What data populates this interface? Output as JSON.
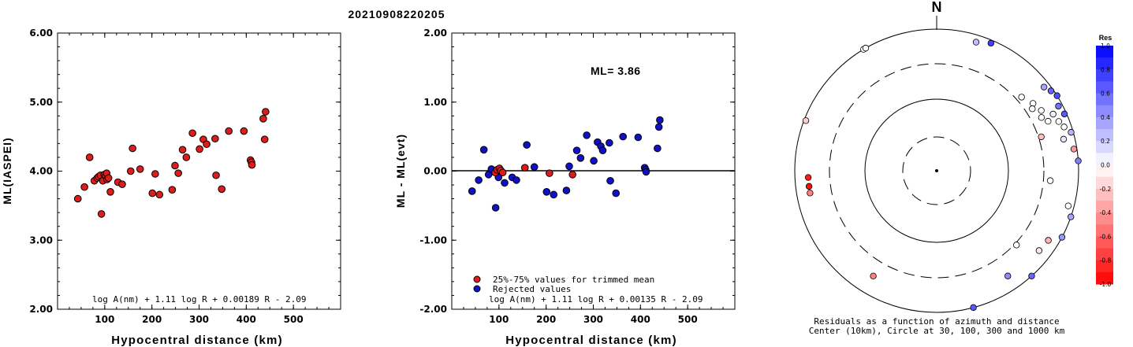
{
  "event_id": "20210908220205",
  "north_label": "N",
  "chart_data": [
    {
      "type": "scatter",
      "title": "",
      "xlabel": "Hypocentral distance (km)",
      "ylabel": "ML(IASPEI)",
      "xlim": [
        0,
        600
      ],
      "ylim": [
        2.0,
        6.0
      ],
      "xticks": [
        "100",
        "200",
        "300",
        "400",
        "500"
      ],
      "yticks": [
        "2.00",
        "3.00",
        "4.00",
        "5.00",
        "6.00"
      ],
      "formula": "log A(nm) + 1.11 log R + 0.00189 R - 2.09",
      "marker_color": "#dd1c1c",
      "points": [
        [
          43,
          3.6
        ],
        [
          57,
          3.77
        ],
        [
          68,
          4.2
        ],
        [
          78,
          3.86
        ],
        [
          84,
          3.9
        ],
        [
          87,
          3.92
        ],
        [
          91,
          3.94
        ],
        [
          93,
          3.38
        ],
        [
          96,
          3.86
        ],
        [
          99,
          3.95
        ],
        [
          102,
          3.93
        ],
        [
          104,
          3.97
        ],
        [
          105,
          3.88
        ],
        [
          108,
          3.9
        ],
        [
          112,
          3.7
        ],
        [
          128,
          3.84
        ],
        [
          137,
          3.81
        ],
        [
          155,
          4.0
        ],
        [
          159,
          4.33
        ],
        [
          175,
          4.03
        ],
        [
          201,
          3.68
        ],
        [
          207,
          3.96
        ],
        [
          216,
          3.66
        ],
        [
          243,
          3.73
        ],
        [
          249,
          4.08
        ],
        [
          256,
          3.97
        ],
        [
          265,
          4.31
        ],
        [
          273,
          4.2
        ],
        [
          286,
          4.55
        ],
        [
          301,
          4.32
        ],
        [
          309,
          4.46
        ],
        [
          316,
          4.39
        ],
        [
          334,
          4.47
        ],
        [
          336,
          3.94
        ],
        [
          348,
          3.74
        ],
        [
          363,
          4.58
        ],
        [
          395,
          4.58
        ],
        [
          409,
          4.16
        ],
        [
          411,
          4.13
        ],
        [
          412,
          4.09
        ],
        [
          436,
          4.76
        ],
        [
          439,
          4.46
        ],
        [
          441,
          4.86
        ]
      ]
    },
    {
      "type": "scatter",
      "title": "",
      "xlabel": "Hypocentral distance (km)",
      "ylabel": "ML - ML(evt)",
      "xlim": [
        0,
        600
      ],
      "ylim": [
        -2.0,
        2.0
      ],
      "xticks": [
        "100",
        "200",
        "300",
        "400",
        "500"
      ],
      "yticks": [
        "-2.00",
        "-1.00",
        "0.00",
        "1.00",
        "2.00"
      ],
      "annotation": "ML= 3.86",
      "formula": "log A(nm) + 1.11 log R + 0.00135 R - 2.09",
      "reference_line": 0,
      "legend": [
        {
          "label": "25%-75% values for trimmed mean",
          "color": "#dd1c1c"
        },
        {
          "label": "Rejected values",
          "color": "#1010c8"
        }
      ],
      "series": [
        {
          "name": "25%-75% values for trimmed mean",
          "color": "#dd1c1c",
          "points": [
            [
              92,
              -0.02
            ],
            [
              96,
              0.02
            ],
            [
              101,
              0.04
            ],
            [
              104,
              0.01
            ],
            [
              108,
              -0.02
            ],
            [
              155,
              0.05
            ],
            [
              207,
              -0.03
            ],
            [
              256,
              -0.05
            ]
          ]
        },
        {
          "name": "Rejected values",
          "color": "#1010c8",
          "points": [
            [
              43,
              -0.29
            ],
            [
              57,
              -0.13
            ],
            [
              68,
              0.31
            ],
            [
              78,
              -0.05
            ],
            [
              84,
              0.03
            ],
            [
              93,
              -0.53
            ],
            [
              99,
              -0.09
            ],
            [
              112,
              -0.17
            ],
            [
              128,
              -0.09
            ],
            [
              137,
              -0.13
            ],
            [
              159,
              0.38
            ],
            [
              175,
              0.06
            ],
            [
              201,
              -0.3
            ],
            [
              216,
              -0.34
            ],
            [
              243,
              -0.28
            ],
            [
              249,
              0.07
            ],
            [
              265,
              0.3
            ],
            [
              273,
              0.19
            ],
            [
              286,
              0.52
            ],
            [
              301,
              0.15
            ],
            [
              309,
              0.42
            ],
            [
              316,
              0.36
            ],
            [
              320,
              0.3
            ],
            [
              334,
              0.41
            ],
            [
              336,
              -0.14
            ],
            [
              348,
              -0.32
            ],
            [
              363,
              0.5
            ],
            [
              395,
              0.49
            ],
            [
              409,
              0.05
            ],
            [
              411,
              0.02
            ],
            [
              412,
              -0.01
            ],
            [
              436,
              0.33
            ],
            [
              439,
              0.64
            ],
            [
              441,
              0.74
            ]
          ]
        }
      ]
    },
    {
      "type": "polar-scatter",
      "caption_line1": "Residuals as a function of azimuth and distance",
      "caption_line2": "Center (10km), Circle at 30, 100, 300 and 1000 km",
      "colorbar_title": "Res",
      "colorbar_ticks": [
        "1.0",
        "0.8",
        "0.6",
        "0.4",
        "0.2",
        "0.0",
        "-0.2",
        "-0.4",
        "-0.6",
        "-0.8",
        "-1.0"
      ],
      "points": [
        {
          "az": 329,
          "dist": 1000,
          "res": 0.0
        },
        {
          "az": 330,
          "dist": 1000,
          "res": 0.0
        },
        {
          "az": 17,
          "dist": 780,
          "res": 0.25
        },
        {
          "az": 23,
          "dist": 900,
          "res": 0.75
        },
        {
          "az": 52,
          "dist": 820,
          "res": 0.35
        },
        {
          "az": 55,
          "dist": 920,
          "res": 0.6
        },
        {
          "az": 58,
          "dist": 1000,
          "res": 0.7
        },
        {
          "az": 62,
          "dist": 870,
          "res": 0.55
        },
        {
          "az": 66,
          "dist": 930,
          "res": 0.65
        },
        {
          "az": 49,
          "dist": 360,
          "res": 0.0
        },
        {
          "az": 55,
          "dist": 430,
          "res": 0.0
        },
        {
          "az": 57,
          "dist": 380,
          "res": 0.0
        },
        {
          "az": 60,
          "dist": 480,
          "res": 0.0
        },
        {
          "az": 63,
          "dist": 430,
          "res": 0.0
        },
        {
          "az": 66,
          "dist": 500,
          "res": 0.0
        },
        {
          "az": 64,
          "dist": 650,
          "res": 0.05
        },
        {
          "az": 68,
          "dist": 700,
          "res": 0.0
        },
        {
          "az": 71,
          "dist": 780,
          "res": 0.0
        },
        {
          "az": 76,
          "dist": 680,
          "res": 0.1
        },
        {
          "az": 74,
          "dist": 930,
          "res": 0.3
        },
        {
          "az": 81,
          "dist": 900,
          "res": -0.4
        },
        {
          "az": 86,
          "dist": 1000,
          "res": 0.5
        },
        {
          "az": 72,
          "dist": 330,
          "res": -0.25
        },
        {
          "az": 95,
          "dist": 380,
          "res": 0.0
        },
        {
          "az": 105,
          "dist": 820,
          "res": 0.0
        },
        {
          "az": 109,
          "dist": 1000,
          "res": 0.35
        },
        {
          "az": 118,
          "dist": 1000,
          "res": 0.4
        },
        {
          "az": 122,
          "dist": 700,
          "res": -0.3
        },
        {
          "az": 128,
          "dist": 660,
          "res": -0.1
        },
        {
          "az": 133,
          "dist": 320,
          "res": 0.0
        },
        {
          "az": 138,
          "dist": 1000,
          "res": 0.6
        },
        {
          "az": 146,
          "dist": 600,
          "res": 0.45
        },
        {
          "az": 165,
          "dist": 1000,
          "res": 0.65
        },
        {
          "az": 211,
          "dist": 520,
          "res": -0.5
        },
        {
          "az": 291,
          "dist": 940,
          "res": -0.2
        },
        {
          "az": 260,
          "dist": 630,
          "res": -0.5
        },
        {
          "az": 263,
          "dist": 630,
          "res": -0.95
        },
        {
          "az": 267,
          "dist": 630,
          "res": -0.9
        }
      ]
    }
  ]
}
